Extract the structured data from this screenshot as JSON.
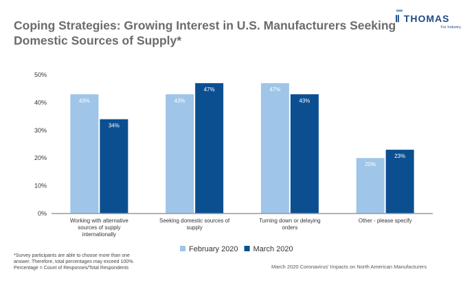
{
  "chart_data": {
    "type": "bar",
    "title": "Coping Strategies: Growing Interest in U.S. Manufacturers Seeking Domestic Sources of Supply*",
    "categories": [
      "Working with alternative sources of supply internationally",
      "Seeking domestic sources of supply",
      "Turning down or delaying orders",
      "Other - please specify"
    ],
    "series": [
      {
        "name": "February 2020",
        "values": [
          43,
          43,
          47,
          20
        ],
        "labels": [
          "43%",
          "43%",
          "47%",
          "20%"
        ],
        "color": "#9fc5e8"
      },
      {
        "name": "March 2020",
        "values": [
          34,
          47,
          43,
          23
        ],
        "labels": [
          "34%",
          "47%",
          "43%",
          "23%"
        ],
        "color": "#0b4f91"
      }
    ],
    "yticks": [
      "0%",
      "10%",
      "20%",
      "30%",
      "40%",
      "50%"
    ],
    "ylim": [
      0,
      50
    ],
    "grid": false,
    "legend": "bottom"
  },
  "logo": {
    "name": "THOMAS",
    "tagline": "For Industry."
  },
  "footnote": [
    "*Survey participants are able to choose more than one",
    "answer. Therefore, total percentages may exceed 100%.",
    "Percentage = Count of Responses/Total Respondents"
  ],
  "source": "March 2020 Coronavirus' Impacts on North American Manufacturers"
}
